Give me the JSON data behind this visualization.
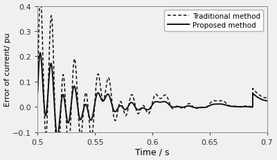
{
  "title": "",
  "xlabel": "Time / s",
  "ylabel": "Error of current/ pu",
  "xlim": [
    0.5,
    0.7
  ],
  "ylim": [
    -0.1,
    0.4
  ],
  "xticks": [
    0.5,
    0.55,
    0.6,
    0.65,
    0.7
  ],
  "yticks": [
    -0.1,
    0.0,
    0.1,
    0.2,
    0.3,
    0.4
  ],
  "legend": [
    "Traditional method",
    "Proposed method"
  ],
  "bg_color": "#f0f0f0",
  "line_color": "#111111",
  "figsize": [
    4.0,
    2.32
  ],
  "dpi": 100
}
